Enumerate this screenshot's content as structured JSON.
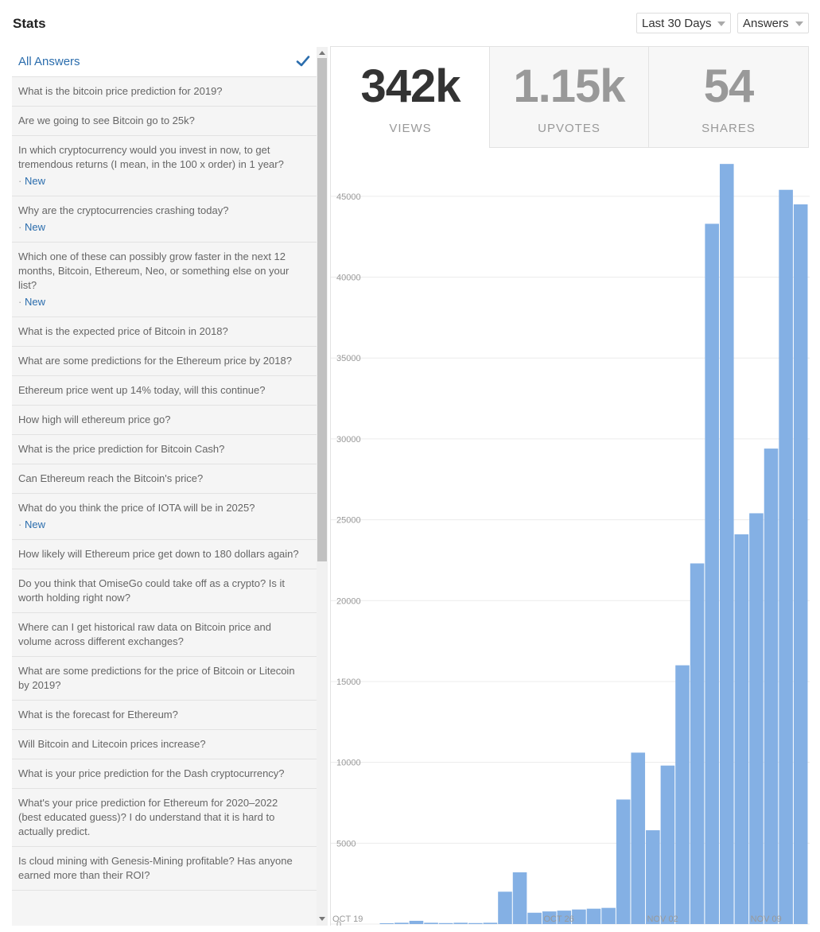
{
  "header": {
    "title": "Stats",
    "range_dropdown": "Last 30 Days",
    "type_dropdown": "Answers"
  },
  "sidebar": {
    "all_label": "All Answers",
    "new_prefix": "· ",
    "new_label": "New",
    "items": [
      {
        "text": "What is the bitcoin price prediction for 2019?",
        "new": false
      },
      {
        "text": "Are we going to see Bitcoin go to 25k?",
        "new": false
      },
      {
        "text": "In which cryptocurrency would you invest in now, to get tremendous returns (I mean, in the 100 x order) in 1 year?",
        "new": true
      },
      {
        "text": "Why are the cryptocurrencies crashing today?",
        "new": true
      },
      {
        "text": "Which one of these can possibly grow faster in the next 12 months, Bitcoin, Ethereum, Neo, or something else on your list?",
        "new": true
      },
      {
        "text": "What is the expected price of Bitcoin in 2018?",
        "new": false
      },
      {
        "text": "What are some predictions for the Ethereum price by 2018?",
        "new": false
      },
      {
        "text": "Ethereum price went up 14% today, will this continue?",
        "new": false
      },
      {
        "text": "How high will ethereum price go?",
        "new": false
      },
      {
        "text": "What is the price prediction for Bitcoin Cash?",
        "new": false
      },
      {
        "text": "Can Ethereum reach the Bitcoin's price?",
        "new": false
      },
      {
        "text": "What do you think the price of IOTA will be in 2025?",
        "new": true
      },
      {
        "text": "How likely will Ethereum price get down to 180 dollars again?",
        "new": false
      },
      {
        "text": "Do you think that OmiseGo could take off as a crypto? Is it worth holding right now?",
        "new": false
      },
      {
        "text": "Where can I get historical raw data on Bitcoin price and volume across different exchanges?",
        "new": false
      },
      {
        "text": "What are some predictions for the price of Bitcoin or Litecoin by 2019?",
        "new": false
      },
      {
        "text": "What is the forecast for Ethereum?",
        "new": false
      },
      {
        "text": "Will Bitcoin and Litecoin prices increase?",
        "new": false
      },
      {
        "text": "What is your price prediction for the Dash cryptocurrency?",
        "new": false
      },
      {
        "text": "What's your price prediction for Ethereum for 2020–2022 (best educated guess)? I do understand that it is hard to actually predict.",
        "new": false
      },
      {
        "text": "Is cloud mining with Genesis-Mining profitable? Has anyone earned more than their ROI?",
        "new": false
      }
    ]
  },
  "stats": {
    "views": {
      "value": "342k",
      "label": "VIEWS"
    },
    "upvotes": {
      "value": "1.15k",
      "label": "UPVOTES"
    },
    "shares": {
      "value": "54",
      "label": "SHARES"
    }
  },
  "colors": {
    "bar": "#84b0e4",
    "link": "#2b6dad",
    "grid": "#ececec"
  },
  "chart_data": {
    "type": "bar",
    "ylim": [
      0,
      47500
    ],
    "yticks": [
      0,
      5000,
      10000,
      15000,
      20000,
      25000,
      30000,
      35000,
      40000,
      45000
    ],
    "x_tick_labels": [
      {
        "label": "OCT 19",
        "index": 0
      },
      {
        "label": "OCT 26",
        "index": 11
      },
      {
        "label": "NOV 02",
        "index": 18
      },
      {
        "label": "NOV 09",
        "index": 25
      }
    ],
    "values": [
      50,
      80,
      200,
      80,
      60,
      80,
      60,
      80,
      2000,
      3200,
      700,
      780,
      830,
      900,
      950,
      1000,
      7700,
      10600,
      5800,
      9800,
      16000,
      22300,
      43300,
      47000,
      24100,
      25400,
      29400,
      45400,
      44500
    ]
  }
}
